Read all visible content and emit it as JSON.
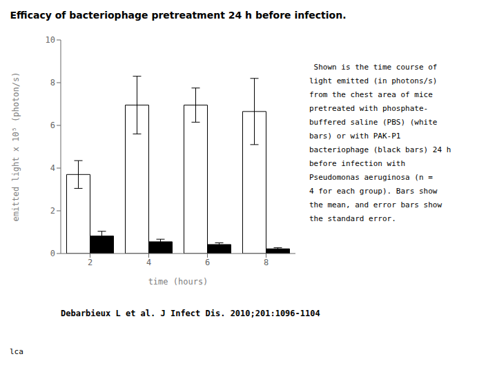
{
  "chart_data": {
    "type": "bar",
    "title": "Efficacy of bacteriophage pretreatment 24 h before infection.",
    "xlabel": "time (hours)",
    "ylabel": "emitted light x 10⁵ (photon/s)",
    "categories": [
      "2",
      "4",
      "6",
      "8"
    ],
    "series": [
      {
        "color": "#ffffff",
        "values": [
          3.7,
          6.95,
          6.95,
          6.65
        ],
        "errors": [
          0.65,
          1.35,
          0.8,
          1.55
        ]
      },
      {
        "color": "#000000",
        "values": [
          0.82,
          0.55,
          0.42,
          0.22
        ],
        "errors": [
          0.22,
          0.12,
          0.08,
          0.05
        ]
      }
    ],
    "ylim": [
      0,
      10
    ],
    "yticks": [
      0,
      2,
      4,
      6,
      8,
      10
    ],
    "grid": false,
    "caption": [
      " Shown is the time course of",
      "light emitted (in photons/s)",
      "from the chest area of mice",
      "pretreated with phosphate-",
      "buffered saline (PBS) (white",
      "bars) or with PAK-P1",
      "bacteriophage (black bars) 24 h",
      "before infection with",
      "Pseudomonas aeruginosa (n =",
      "4 for each group). Bars show",
      "the mean, and error bars show",
      "the standard error."
    ],
    "footnote": "Debarbieux L et al. J Infect Dis. 2010;201:1096-1104",
    "corner_label": "lca"
  }
}
